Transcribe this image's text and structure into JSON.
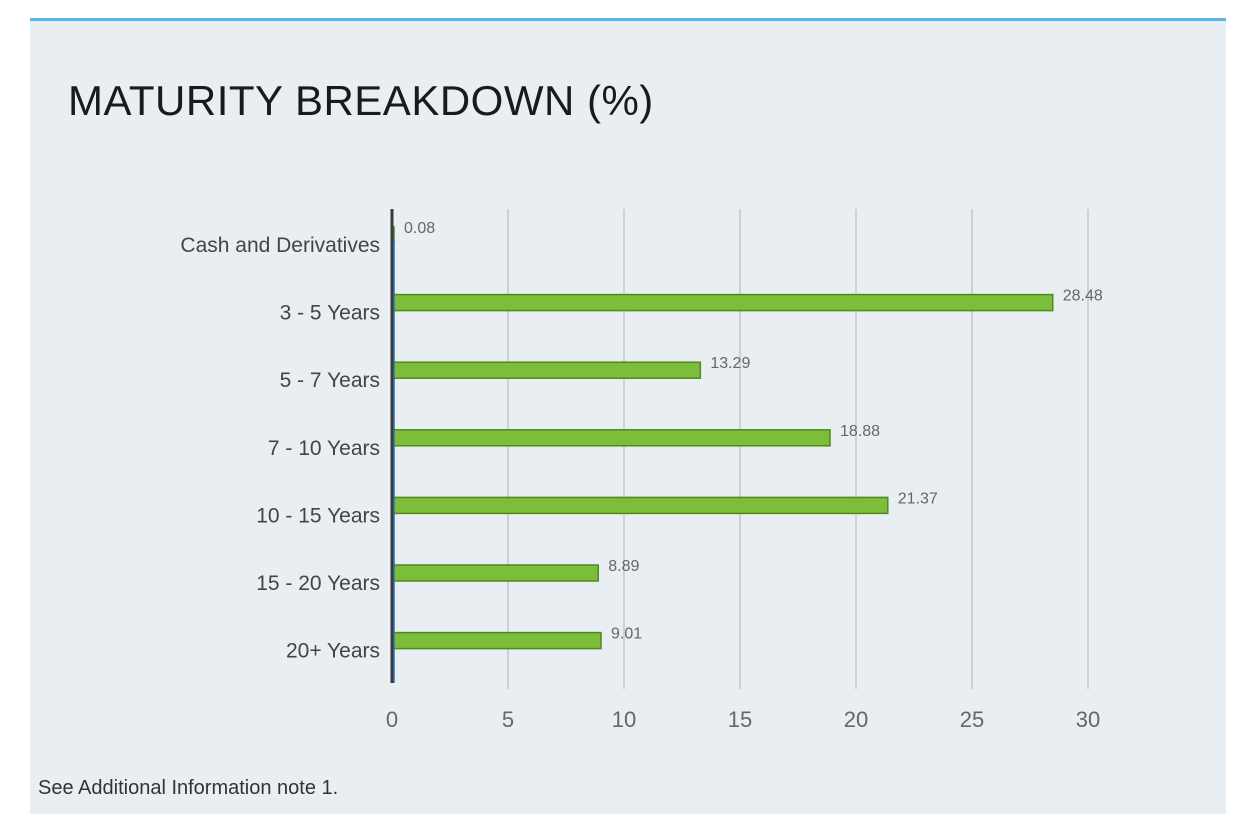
{
  "panel": {
    "title": "MATURITY BREAKDOWN (%)",
    "footnote": "See Additional Information note 1.",
    "accent_color": "#5bb4e5",
    "background_color": "#e9eef2"
  },
  "chart_data": {
    "type": "bar",
    "orientation": "horizontal",
    "title": "MATURITY BREAKDOWN (%)",
    "categories": [
      "Cash and Derivatives",
      "3 - 5 Years",
      "5 - 7 Years",
      "7 - 10 Years",
      "10 - 15 Years",
      "15 - 20 Years",
      "20+ Years"
    ],
    "values": [
      0.08,
      28.48,
      13.29,
      18.88,
      21.37,
      8.89,
      9.01
    ],
    "value_labels": [
      "0.08",
      "28.48",
      "13.29",
      "18.88",
      "21.37",
      "8.89",
      "9.01"
    ],
    "xlim": [
      0,
      30
    ],
    "xticks": [
      0,
      5,
      10,
      15,
      20,
      25,
      30
    ],
    "xtick_labels": [
      "0",
      "5",
      "10",
      "15",
      "20",
      "25",
      "30"
    ],
    "grid": "vertical",
    "legend": "none",
    "bar_color": "#7cbd3a",
    "bar_edge_color": "#4e8a1f"
  }
}
